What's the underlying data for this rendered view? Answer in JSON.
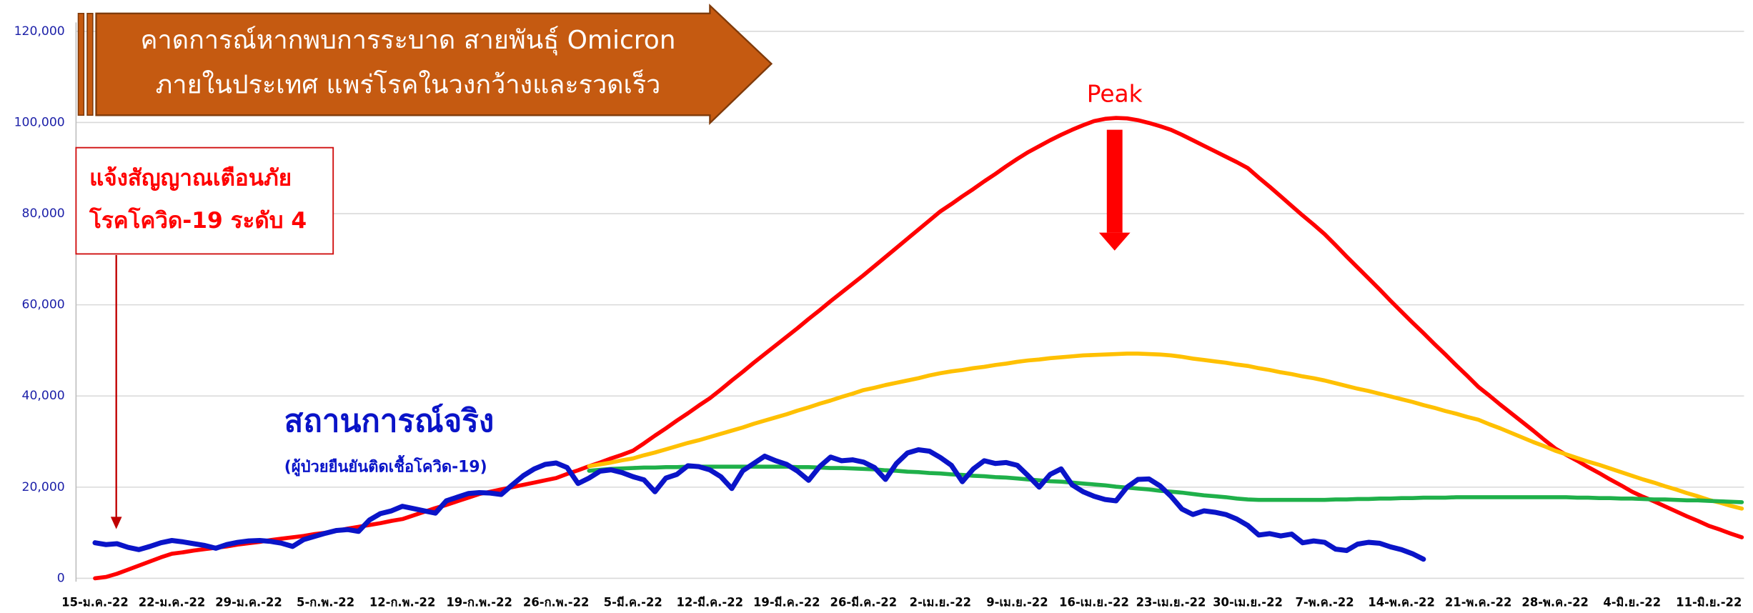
{
  "chart_data": {
    "type": "line",
    "title": [
      "คาดการณ์หากพบการระบาด สายพันธุ์ Omicron",
      "ภายในประเทศ แพร่โรคในวงกว้างและรวดเร็ว"
    ],
    "alert": [
      "แจ้งสัญญาณเตือนภัย",
      "โรคโควิด-19 ระดับ 4"
    ],
    "peak_label": "Peak",
    "actual_label": "สถานการณ์จริง",
    "actual_note": "(ผู้ป่วยยืนยันติดเชื้อโควิด-19)",
    "grid": true,
    "ylim": [
      0,
      120000
    ],
    "yticks": [
      0,
      {
        "value": 20000,
        "label": "20,000"
      },
      {
        "value": 40000,
        "label": "40,000"
      },
      {
        "value": 60000,
        "label": "60,000"
      },
      {
        "value": 80000,
        "label": "80,000"
      },
      {
        "value": 100000,
        "label": "100,000"
      },
      {
        "value": 120000,
        "label": "120,000"
      }
    ],
    "categories": [
      "15-ม.ค.-22",
      null,
      null,
      null,
      null,
      null,
      null,
      "22-ม.ค.-22",
      null,
      null,
      null,
      null,
      null,
      null,
      "29-ม.ค.-22",
      null,
      null,
      null,
      null,
      null,
      null,
      "5-ก.พ.-22",
      null,
      null,
      null,
      null,
      null,
      null,
      "12-ก.พ.-22",
      null,
      null,
      null,
      null,
      null,
      null,
      "19-ก.พ.-22",
      null,
      null,
      null,
      null,
      null,
      null,
      "26-ก.พ.-22",
      null,
      null,
      null,
      null,
      null,
      null,
      "5-มี.ค.-22",
      null,
      null,
      null,
      null,
      null,
      null,
      "12-มี.ค.-22",
      null,
      null,
      null,
      null,
      null,
      null,
      "19-มี.ค.-22",
      null,
      null,
      null,
      null,
      null,
      null,
      "26-มี.ค.-22",
      null,
      null,
      null,
      null,
      null,
      null,
      "2-เม.ย.-22",
      null,
      null,
      null,
      null,
      null,
      null,
      "9-เม.ย.-22",
      null,
      null,
      null,
      null,
      null,
      null,
      "16-เม.ย.-22",
      null,
      null,
      null,
      null,
      null,
      null,
      "23-เม.ย.-22",
      null,
      null,
      null,
      null,
      null,
      null,
      "30-เม.ย.-22",
      null,
      null,
      null,
      null,
      null,
      null,
      "7-พ.ค.-22",
      null,
      null,
      null,
      null,
      null,
      null,
      "14-พ.ค.-22",
      null,
      null,
      null,
      null,
      null,
      null,
      "21-พ.ค.-22",
      null,
      null,
      null,
      null,
      null,
      null,
      "28-พ.ค.-22",
      null,
      null,
      null,
      null,
      null,
      null,
      "4-มิ.ย.-22",
      null,
      null,
      null,
      null,
      null,
      null,
      "11-มิ.ย.-22",
      null,
      null,
      null
    ],
    "series": [
      {
        "color": "#ff0000",
        "values": [
          0,
          300,
          1000,
          1900,
          2800,
          3700,
          4600,
          5400,
          5700,
          6100,
          6400,
          6700,
          7000,
          7400,
          7700,
          8000,
          8400,
          8700,
          9000,
          9300,
          9700,
          10000,
          10400,
          10900,
          11300,
          11700,
          12100,
          12600,
          13000,
          13800,
          14600,
          15400,
          16100,
          16900,
          17700,
          18500,
          19000,
          19500,
          20000,
          20500,
          21000,
          21500,
          22000,
          22900,
          23700,
          24600,
          25400,
          26300,
          27100,
          28000,
          29600,
          31300,
          32900,
          34600,
          36200,
          37900,
          39500,
          41400,
          43400,
          45300,
          47300,
          49200,
          51100,
          53000,
          54900,
          56900,
          58800,
          60800,
          62700,
          64600,
          66500,
          68500,
          70500,
          72500,
          74500,
          76500,
          78500,
          80500,
          82100,
          83800,
          85400,
          87100,
          88700,
          90400,
          92000,
          93500,
          94800,
          96100,
          97300,
          98400,
          99400,
          100300,
          100800,
          101000,
          100900,
          100500,
          99900,
          99200,
          98400,
          97300,
          96100,
          94900,
          93700,
          92500,
          91300,
          90000,
          87900,
          85900,
          83800,
          81700,
          79600,
          77600,
          75500,
          73100,
          70600,
          68200,
          65800,
          63400,
          60900,
          58500,
          56100,
          53800,
          51400,
          49100,
          46700,
          44400,
          42000,
          40100,
          38100,
          36200,
          34300,
          32400,
          30400,
          28500,
          27100,
          25800,
          24400,
          23100,
          21700,
          20400,
          19000,
          17900,
          16900,
          15800,
          14700,
          13600,
          12600,
          11500,
          10700,
          9800,
          9000
        ]
      },
      {
        "color": "#ffc000",
        "values": [
          null,
          null,
          null,
          null,
          null,
          null,
          null,
          null,
          null,
          null,
          null,
          null,
          null,
          null,
          null,
          null,
          null,
          null,
          null,
          null,
          null,
          null,
          null,
          null,
          null,
          null,
          null,
          null,
          null,
          null,
          null,
          null,
          null,
          null,
          null,
          null,
          null,
          null,
          null,
          null,
          null,
          null,
          null,
          null,
          null,
          24600,
          25000,
          25400,
          25900,
          26300,
          27000,
          27600,
          28300,
          29000,
          29700,
          30300,
          31000,
          31700,
          32400,
          33100,
          33900,
          34600,
          35300,
          36000,
          36800,
          37500,
          38300,
          39000,
          39800,
          40500,
          41300,
          41800,
          42400,
          42900,
          43400,
          43900,
          44500,
          45000,
          45400,
          45700,
          46100,
          46400,
          46800,
          47100,
          47500,
          47800,
          48000,
          48300,
          48500,
          48700,
          48900,
          49000,
          49100,
          49200,
          49300,
          49300,
          49200,
          49100,
          48900,
          48600,
          48200,
          47900,
          47600,
          47300,
          46900,
          46600,
          46100,
          45700,
          45200,
          44800,
          44300,
          43900,
          43400,
          42800,
          42200,
          41600,
          41100,
          40500,
          39900,
          39300,
          38700,
          38000,
          37400,
          36700,
          36100,
          35400,
          34800,
          33800,
          32900,
          31900,
          30900,
          29900,
          29000,
          28000,
          27200,
          26400,
          25600,
          24900,
          24100,
          23300,
          22500,
          21700,
          21000,
          20200,
          19500,
          18700,
          18000,
          17200,
          16600,
          15900,
          15300
        ]
      },
      {
        "color": "#1fb04a",
        "values": [
          null,
          null,
          null,
          null,
          null,
          null,
          null,
          null,
          null,
          null,
          null,
          null,
          null,
          null,
          null,
          null,
          null,
          null,
          null,
          null,
          null,
          null,
          null,
          null,
          null,
          null,
          null,
          null,
          null,
          null,
          null,
          null,
          null,
          null,
          null,
          null,
          null,
          null,
          null,
          null,
          null,
          null,
          null,
          null,
          null,
          23600,
          23800,
          24000,
          24100,
          24200,
          24300,
          24300,
          24400,
          24400,
          24500,
          24500,
          24500,
          24500,
          24500,
          24500,
          24500,
          24500,
          24500,
          24500,
          24400,
          24400,
          24300,
          24200,
          24200,
          24100,
          24000,
          23900,
          23700,
          23600,
          23400,
          23300,
          23100,
          23000,
          22800,
          22700,
          22500,
          22400,
          22200,
          22100,
          21900,
          21700,
          21500,
          21300,
          21200,
          21000,
          20800,
          20600,
          20400,
          20100,
          19900,
          19700,
          19500,
          19200,
          19000,
          18800,
          18500,
          18200,
          18000,
          17800,
          17500,
          17300,
          17200,
          17200,
          17200,
          17200,
          17200,
          17200,
          17200,
          17300,
          17300,
          17400,
          17400,
          17500,
          17500,
          17600,
          17600,
          17700,
          17700,
          17700,
          17800,
          17800,
          17800,
          17800,
          17800,
          17800,
          17800,
          17800,
          17800,
          17800,
          17800,
          17700,
          17700,
          17600,
          17600,
          17500,
          17500,
          17400,
          17300,
          17300,
          17200,
          17100,
          17100,
          17000,
          16900,
          16800,
          16700
        ]
      },
      {
        "color": "#0a14c8",
        "values": [
          7800,
          7400,
          7600,
          6800,
          6300,
          7000,
          7800,
          8300,
          8000,
          7600,
          7200,
          6600,
          7400,
          7900,
          8200,
          8300,
          8100,
          7700,
          7000,
          8500,
          9200,
          9900,
          10500,
          10700,
          10300,
          12800,
          14200,
          14800,
          15800,
          15300,
          14800,
          14300,
          17000,
          17800,
          18600,
          18800,
          18700,
          18400,
          20500,
          22500,
          24000,
          25000,
          25300,
          24300,
          20800,
          22000,
          23500,
          23800,
          23200,
          22300,
          21600,
          19000,
          22000,
          22800,
          24700,
          24500,
          23800,
          22300,
          19700,
          23600,
          25200,
          26800,
          25800,
          25000,
          23500,
          21500,
          24500,
          26600,
          25800,
          26000,
          25500,
          24300,
          21700,
          25200,
          27500,
          28200,
          27900,
          26500,
          24800,
          21200,
          24000,
          25800,
          25200,
          25400,
          24800,
          22500,
          20000,
          22800,
          24000,
          20500,
          19000,
          18000,
          17300,
          17000,
          20000,
          21700,
          21800,
          20300,
          18000,
          15200,
          14000,
          14800,
          14500,
          14000,
          13000,
          11600,
          9500,
          9800,
          9300,
          9700,
          7800,
          8200,
          7900,
          6400,
          6100,
          7500,
          7900,
          7700,
          6900,
          6300,
          5400,
          4200,
          null,
          null,
          null,
          null,
          null,
          null,
          null,
          null,
          null,
          null,
          null,
          null,
          null,
          null,
          null,
          null,
          null,
          null,
          null,
          null,
          null,
          null,
          null,
          null,
          null,
          null,
          null,
          null,
          null
        ]
      }
    ]
  }
}
